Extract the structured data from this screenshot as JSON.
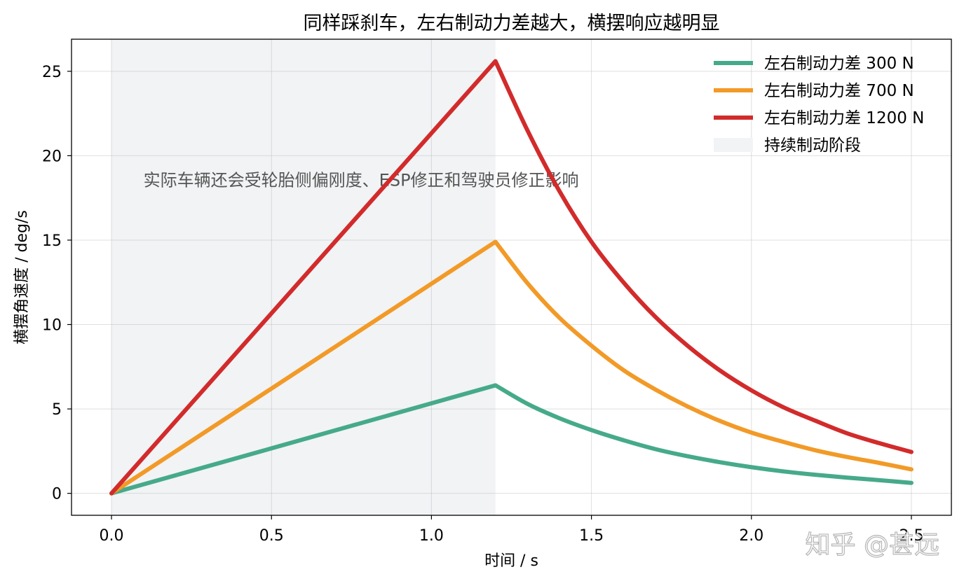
{
  "chart_data": {
    "type": "line",
    "title": "同样踩刹车，左右制动力差越大，横摆响应越明显",
    "xlabel": "时间 / s",
    "ylabel": "横摆角速度 / deg/s",
    "xlim": [
      -0.125,
      2.625
    ],
    "ylim": [
      -1.3,
      26.9
    ],
    "xticks": [
      0.0,
      0.5,
      1.0,
      1.5,
      2.0,
      2.5
    ],
    "xtick_labels": [
      "0.0",
      "0.5",
      "1.0",
      "1.5",
      "2.0",
      "2.5"
    ],
    "yticks": [
      0,
      5,
      10,
      15,
      20,
      25
    ],
    "ytick_labels": [
      "0",
      "5",
      "10",
      "15",
      "20",
      "25"
    ],
    "grid": true,
    "legend_position": "top-right",
    "shaded_region": {
      "x_start": 0.0,
      "x_end": 1.2,
      "label": "持续制动阶段",
      "color": "#f1f3f5"
    },
    "annotation": {
      "text": "实际车辆还会受轮胎侧偏刚度、ESP修正和驾驶员修正影响",
      "x": 0.1,
      "y": 18.5
    },
    "watermark": "知乎 @甚远",
    "series": [
      {
        "name": "左右制动力差 300 N",
        "color": "#46aa8a",
        "x": [
          0.0,
          1.2,
          1.3,
          1.4,
          1.5,
          1.6,
          1.7,
          1.8,
          1.9,
          2.0,
          2.1,
          2.2,
          2.3,
          2.4,
          2.5
        ],
        "y": [
          0.0,
          6.4,
          5.3,
          4.45,
          3.75,
          3.15,
          2.62,
          2.2,
          1.85,
          1.55,
          1.3,
          1.1,
          0.93,
          0.78,
          0.62
        ]
      },
      {
        "name": "左右制动力差 700 N",
        "color": "#f29a27",
        "x": [
          0.0,
          1.2,
          1.3,
          1.4,
          1.5,
          1.6,
          1.7,
          1.8,
          1.9,
          2.0,
          2.1,
          2.2,
          2.3,
          2.4,
          2.5
        ],
        "y": [
          0.0,
          14.9,
          12.45,
          10.4,
          8.75,
          7.3,
          6.15,
          5.15,
          4.3,
          3.6,
          3.05,
          2.55,
          2.15,
          1.8,
          1.42
        ]
      },
      {
        "name": "左右制动力差 1200 N",
        "color": "#d22b2b",
        "x": [
          0.0,
          1.2,
          1.3,
          1.4,
          1.5,
          1.6,
          1.7,
          1.8,
          1.9,
          2.0,
          2.1,
          2.2,
          2.3,
          2.4,
          2.5
        ],
        "y": [
          0.0,
          25.6,
          21.5,
          17.9,
          14.9,
          12.5,
          10.45,
          8.75,
          7.3,
          6.1,
          5.1,
          4.3,
          3.55,
          2.97,
          2.45
        ]
      }
    ]
  }
}
